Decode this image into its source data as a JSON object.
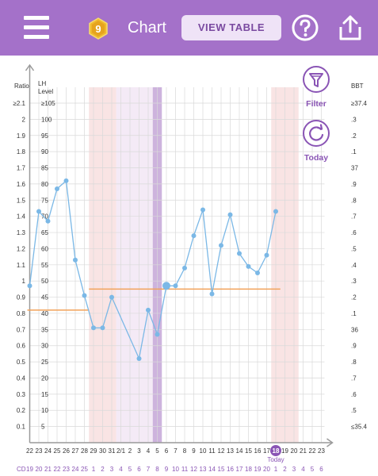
{
  "header": {
    "menu_icon": "hamburger-menu-icon",
    "badge_number": "9",
    "title": "Chart",
    "view_table_label": "VIEW TABLE",
    "help_icon": "question-circle-icon",
    "share_icon": "share-upload-icon",
    "bar_color": "#a471c9"
  },
  "controls": {
    "filter_label": "Filter",
    "filter_icon": "funnel-icon",
    "today_label": "Today",
    "today_icon": "refresh-circle-icon"
  },
  "chart_data": {
    "type": "line",
    "left_axis_title": "Ratio",
    "lh_axis_title": "LH\nLevel",
    "right_axis_title": "BBT",
    "ratio_ticks": [
      "≥2.1",
      "2",
      "1.9",
      "1.8",
      "1.7",
      "1.6",
      "1.5",
      "1.4",
      "1.3",
      "1.2",
      "1.1",
      "1",
      "0.9",
      "0.8",
      "0.7",
      "0.6",
      "0.5",
      "0.4",
      "0.3",
      "0.2",
      "0.1"
    ],
    "lh_ticks": [
      "≥105",
      "100",
      "95",
      "90",
      "85",
      "80",
      "75",
      "70",
      "65",
      "60",
      "55",
      "50",
      "45",
      "40",
      "35",
      "30",
      "25",
      "20",
      "15",
      "10",
      "5"
    ],
    "bbt_ticks": [
      "≥37.4",
      ".3",
      ".2",
      ".1",
      "37",
      ".9",
      ".8",
      ".7",
      ".6",
      ".5",
      ".4",
      ".3",
      ".2",
      ".1",
      "36",
      ".9",
      ".8",
      ".7",
      ".6",
      ".5",
      "≤35.4"
    ],
    "ratio_range": [
      0,
      2.1
    ],
    "date_labels": [
      "22",
      "23",
      "24",
      "25",
      "26",
      "27",
      "28",
      "29",
      "30",
      "31",
      "2/1",
      "2",
      "3",
      "4",
      "5",
      "6",
      "7",
      "8",
      "9",
      "10",
      "11",
      "12",
      "13",
      "14",
      "15",
      "16",
      "17",
      "18",
      "19",
      "20",
      "21",
      "22",
      "23"
    ],
    "cd_prefix": "CD",
    "cycle_days": [
      "19",
      "20",
      "21",
      "22",
      "23",
      "24",
      "25",
      "1",
      "2",
      "3",
      "4",
      "5",
      "6",
      "7",
      "8",
      "9",
      "10",
      "11",
      "12",
      "13",
      "14",
      "15",
      "16",
      "17",
      "18",
      "19",
      "20",
      "1",
      "2",
      "3",
      "4",
      "5",
      "6"
    ],
    "today_label": "Today",
    "today_index": 27,
    "series": [
      {
        "color": "#7bb8e6",
        "values": [
          0.97,
          1.43,
          1.37,
          1.57,
          1.62,
          1.13,
          0.91,
          0.71,
          0.71,
          0.9,
          null,
          null,
          0.52,
          0.82,
          0.67,
          0.97,
          0.97,
          1.08,
          1.28,
          1.44,
          0.92,
          1.22,
          1.41,
          1.17,
          1.09,
          1.05,
          1.16,
          1.43
        ],
        "large_point_index": 15
      }
    ],
    "coverline_1": {
      "value": 0.82,
      "from_index": 0,
      "to_index": 7
    },
    "coverline_2": {
      "value": 0.95,
      "from_index": 7,
      "to_index": 27
    },
    "coverline_color": "#f2a25a",
    "shaded_periods": [
      {
        "from_index": 7,
        "to_index": 10,
        "color": "#f9e4e4"
      },
      {
        "from_index": 10,
        "to_index": 14,
        "color": "#f4eaf6"
      },
      {
        "from_index": 14,
        "to_index": 15,
        "color": "#cdb3dd"
      },
      {
        "from_index": 27,
        "to_index": 30,
        "color": "#f9e4e4"
      }
    ],
    "grid": true
  }
}
